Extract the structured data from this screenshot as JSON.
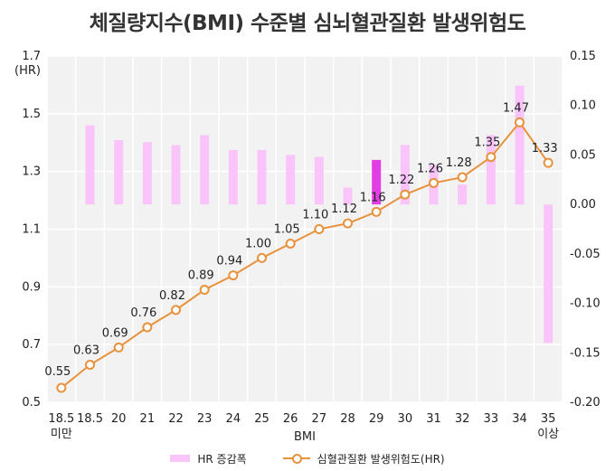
{
  "title": "체질량지수(BMI) 수준별 심뇌혈관질환 발생위험도",
  "chart_data": {
    "type": "bar",
    "categories": [
      "18.5 미만",
      "18.5",
      "20",
      "21",
      "22",
      "23",
      "24",
      "25",
      "26",
      "27",
      "28",
      "29",
      "30",
      "31",
      "32",
      "33",
      "34",
      "35 이상"
    ],
    "x_tick_labels": [
      [
        "18.5",
        "미만"
      ],
      [
        "18.5"
      ],
      [
        "20"
      ],
      [
        "21"
      ],
      [
        "22"
      ],
      [
        "23"
      ],
      [
        "24"
      ],
      [
        "25"
      ],
      [
        "26"
      ],
      [
        "27"
      ],
      [
        "28"
      ],
      [
        "29"
      ],
      [
        "30"
      ],
      [
        "31"
      ],
      [
        "32"
      ],
      [
        "33"
      ],
      [
        "34"
      ],
      [
        "35",
        "이상"
      ]
    ],
    "xlabel": "BMI",
    "left_axis": {
      "unit_label": "(HR)",
      "ylim": [
        0.5,
        1.7
      ],
      "ticks": [
        "0.5",
        "0.7",
        "0.9",
        "1.1",
        "1.3",
        "1.5",
        "1.7"
      ]
    },
    "right_axis": {
      "ylim": [
        -0.2,
        0.15
      ],
      "ticks": [
        "-0.20",
        "-0.15",
        "-0.10",
        "-0.05",
        "0.00",
        "0.05",
        "0.10",
        "0.15"
      ]
    },
    "grid": true,
    "legend_position": "bottom",
    "series": [
      {
        "name": "HR 증감폭",
        "type": "bar",
        "axis": "right",
        "color": "#f9c4f9",
        "highlight_color": "#e33ee3",
        "highlight_index": 11,
        "values": [
          null,
          0.08,
          0.065,
          0.063,
          0.06,
          0.07,
          0.055,
          0.055,
          0.05,
          0.048,
          0.017,
          0.045,
          0.06,
          0.04,
          0.02,
          0.07,
          0.12,
          -0.14
        ]
      },
      {
        "name": "심혈관질환 발생위험도(HR)",
        "type": "line",
        "axis": "left",
        "color": "#e8923e",
        "values": [
          0.55,
          0.63,
          0.69,
          0.76,
          0.82,
          0.89,
          0.94,
          1.0,
          1.05,
          1.1,
          1.12,
          1.16,
          1.22,
          1.26,
          1.28,
          1.35,
          1.47,
          1.33
        ],
        "labels": [
          "0.55",
          "0.63",
          "0.69",
          "0.76",
          "0.82",
          "0.89",
          "0.94",
          "1.00",
          "1.05",
          "1.10",
          "1.12",
          "1.16",
          "1.22",
          "1.26",
          "1.28",
          "1.35",
          "1.47",
          "1.33"
        ]
      }
    ]
  }
}
